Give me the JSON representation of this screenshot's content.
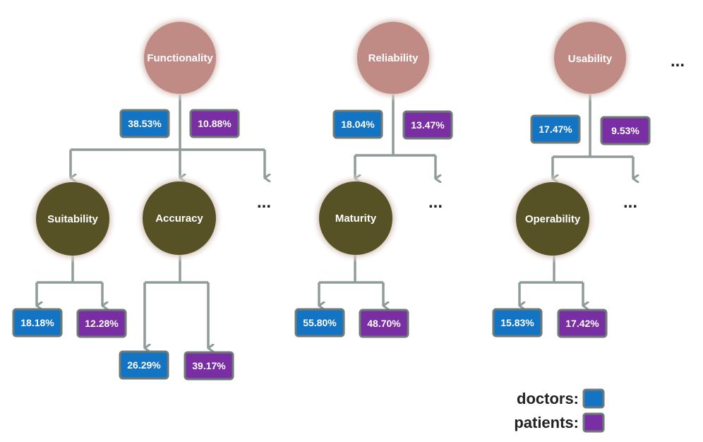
{
  "colors": {
    "doctors": "#1474c4",
    "patients": "#7a2ea3",
    "box_border": "#6e7a76",
    "connector": "#8f9c97",
    "top_node": "#c08a85",
    "sub_node": "#565226",
    "glow": "#dccdc3"
  },
  "nodes": {
    "functionality": "Functionality",
    "reliability": "Reliability",
    "usability": "Usability",
    "suitability": "Suitability",
    "accuracy": "Accuracy",
    "maturity": "Maturity",
    "operability": "Operability"
  },
  "values": {
    "functionality_doctors": "38.53%",
    "functionality_patients": "10.88%",
    "reliability_doctors": "18.04%",
    "reliability_patients": "13.47%",
    "usability_doctors": "17.47%",
    "usability_patients": "9.53%",
    "suitability_doctors": "18.18%",
    "suitability_patients": "12.28%",
    "accuracy_doctors": "26.29%",
    "accuracy_patients": "39.17%",
    "maturity_doctors": "55.80%",
    "maturity_patients": "48.70%",
    "operability_doctors": "15.83%",
    "operability_patients": "17.42%"
  },
  "ellipsis": "...",
  "legend": {
    "doctors": "doctors:",
    "patients": "patients:"
  }
}
